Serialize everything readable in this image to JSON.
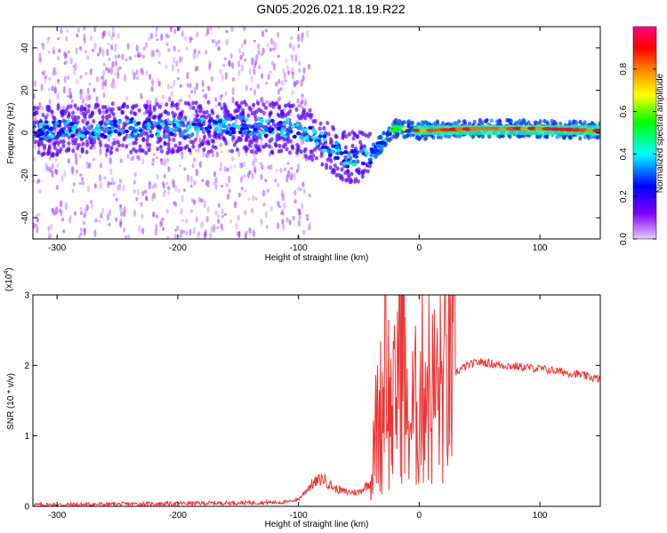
{
  "title": "GN05.2026.021.18.19.R22",
  "chart_data": [
    {
      "type": "heatmap",
      "xlabel": "Height of straight line (km)",
      "ylabel": "Frequency (Hz)",
      "xlim": [
        -320,
        150
      ],
      "ylim": [
        -50,
        50
      ],
      "xticks": [
        -300,
        -200,
        -100,
        0,
        100
      ],
      "yticks": [
        -40,
        -20,
        0,
        20,
        40
      ],
      "colorbar": {
        "label": "Normalized spectral amplitude",
        "range": [
          0,
          1
        ],
        "ticks": [
          "0.0",
          "0.2",
          "0.4",
          "0.6",
          "0.8"
        ],
        "colormap": [
          "#e6ccff",
          "#8000ff",
          "#0000ff",
          "#00ffff",
          "#00ff00",
          "#ffff00",
          "#ff8000",
          "#ff0000",
          "#ff0080"
        ]
      },
      "ridge": [
        {
          "x": -320,
          "f": 1,
          "amp": 0.25
        },
        {
          "x": -250,
          "f": 2,
          "amp": 0.3
        },
        {
          "x": -150,
          "f": 3,
          "amp": 0.3
        },
        {
          "x": -100,
          "f": 2,
          "amp": 0.3
        },
        {
          "x": -80,
          "f": -4,
          "amp": 0.3
        },
        {
          "x": -60,
          "f": -12,
          "amp": 0.3
        },
        {
          "x": -40,
          "f": -10,
          "amp": 0.3
        },
        {
          "x": -20,
          "f": 2,
          "amp": 0.5
        },
        {
          "x": 0,
          "f": 1,
          "amp": 0.85
        },
        {
          "x": 50,
          "f": 2,
          "amp": 0.85
        },
        {
          "x": 100,
          "f": 2,
          "amp": 0.85
        },
        {
          "x": 150,
          "f": 1,
          "amp": 0.85
        }
      ]
    },
    {
      "type": "line",
      "xlabel": "Height of straight line (km)",
      "ylabel": "SNR (10 * v/v)",
      "scale_label": "(x10",
      "scale_exp": "4",
      "scale_close": ")",
      "xlim": [
        -320,
        150
      ],
      "ylim": [
        0,
        3
      ],
      "xticks": [
        -300,
        -200,
        -100,
        0,
        100
      ],
      "yticks": [
        0,
        1,
        2,
        3
      ],
      "series": [
        {
          "name": "SNR",
          "color": "#ee3333",
          "x": [
            -320,
            -250,
            -200,
            -150,
            -110,
            -100,
            -90,
            -80,
            -70,
            -60,
            -50,
            -40,
            -35,
            -30,
            -28,
            -25,
            -20,
            -15,
            -10,
            -5,
            0,
            5,
            10,
            20,
            30,
            40,
            50,
            70,
            90,
            110,
            130,
            150
          ],
          "y": [
            0.02,
            0.03,
            0.04,
            0.05,
            0.06,
            0.1,
            0.3,
            0.4,
            0.25,
            0.2,
            0.2,
            0.35,
            1.2,
            1.4,
            3.0,
            1.3,
            1.4,
            2.9,
            1.1,
            1.3,
            1.5,
            1.9,
            1.6,
            1.7,
            1.9,
            2.0,
            2.05,
            2.0,
            1.97,
            1.93,
            1.88,
            1.8
          ]
        }
      ]
    }
  ]
}
